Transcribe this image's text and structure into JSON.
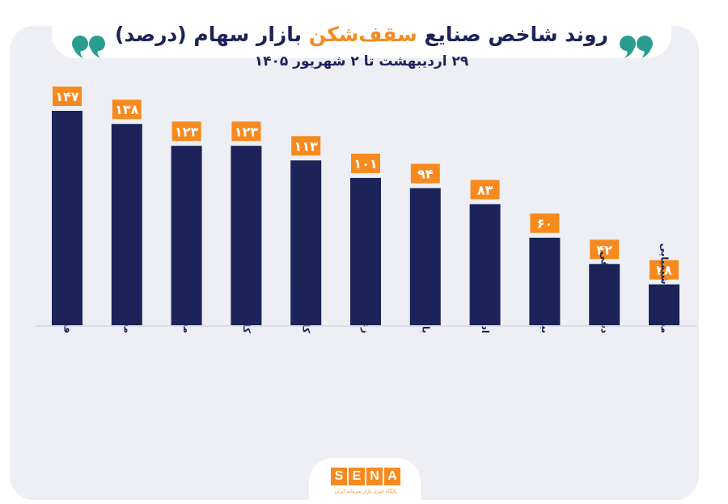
{
  "title": {
    "part1": "روند شاخص صنایع ",
    "highlight": "سقف‌شکن",
    "part2": " بازار سهام (درصد)"
  },
  "subtitle": "۲۹ اردیبهشت تا ۲ شهریور ۱۴۰۵",
  "logo": {
    "letters": [
      "S",
      "E",
      "N",
      "A"
    ],
    "tagline": "پایگاه خبری بازار سرمایه ایران"
  },
  "colors": {
    "bar": "#1b2359",
    "label_bg": "#f68a1f",
    "label_text": "#ffffff",
    "accent": "#f68a1f",
    "quote": "#2a9d8f",
    "background": "#eeeff4"
  },
  "chart_data": {
    "type": "bar",
    "categories": [
      "فنی و مهندسی",
      "محصولات غذایی",
      "محصولات فلزی",
      "کانی غیرفلزی",
      "کاشی و سرامیک",
      "زغال سنگ",
      "بانک‌ها و موسسات اعتباری",
      "اداره بازارهای مالی",
      "بیمه و بازنشستگی",
      "دستگاه‌های برقی",
      "محصولات شیمیایی"
    ],
    "values": [
      147,
      138,
      123,
      123,
      113,
      101,
      94,
      83,
      60,
      42,
      28
    ],
    "value_labels": [
      "۱۴۷",
      "۱۳۸",
      "۱۲۳",
      "۱۲۳",
      "۱۱۳",
      "۱۰۱",
      "۹۴",
      "۸۳",
      "۶۰",
      "۴۲",
      "۲۸"
    ],
    "ylim": [
      0,
      147
    ],
    "grid": false,
    "legend": "none"
  }
}
